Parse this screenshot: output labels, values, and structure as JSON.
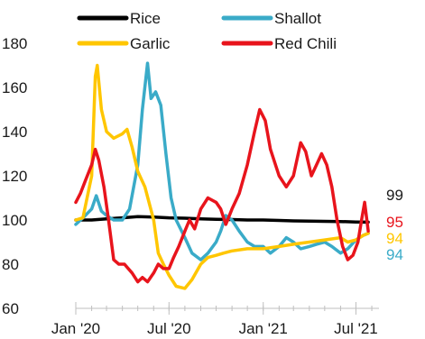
{
  "chart_data": {
    "type": "line",
    "title": "",
    "xlabel": "",
    "ylabel": "",
    "ylim": [
      60,
      180
    ],
    "yticks": [
      60,
      80,
      100,
      120,
      140,
      160,
      180
    ],
    "xlim": [
      "2020-01-01",
      "2021-08-15"
    ],
    "xticks": [
      {
        "date": "2020-01-01",
        "label": "Jan '20"
      },
      {
        "date": "2020-07-01",
        "label": "Jul '20"
      },
      {
        "date": "2021-01-01",
        "label": "Jan '21"
      },
      {
        "date": "2021-07-01",
        "label": "Jul '21"
      }
    ],
    "grid": false,
    "legend_position": "top",
    "series": [
      {
        "name": "Rice",
        "color": "#000000",
        "end_label": "99",
        "points": [
          [
            "2020-01-01",
            100
          ],
          [
            "2020-02-01",
            100
          ],
          [
            "2020-03-01",
            100.5
          ],
          [
            "2020-04-01",
            101
          ],
          [
            "2020-05-01",
            101.5
          ],
          [
            "2020-06-01",
            101.3
          ],
          [
            "2020-07-01",
            101
          ],
          [
            "2020-08-01",
            100.8
          ],
          [
            "2020-09-01",
            100.5
          ],
          [
            "2020-10-01",
            100.3
          ],
          [
            "2020-11-01",
            100.2
          ],
          [
            "2020-12-01",
            100
          ],
          [
            "2021-01-01",
            100
          ],
          [
            "2021-02-01",
            99.8
          ],
          [
            "2021-03-01",
            99.6
          ],
          [
            "2021-04-01",
            99.5
          ],
          [
            "2021-05-01",
            99.4
          ],
          [
            "2021-06-01",
            99.3
          ],
          [
            "2021-07-01",
            99.1
          ],
          [
            "2021-07-25",
            99
          ]
        ]
      },
      {
        "name": "Shallot",
        "color": "#3aabc8",
        "end_label": "94",
        "points": [
          [
            "2020-01-01",
            98
          ],
          [
            "2020-01-15",
            101
          ],
          [
            "2020-02-01",
            105
          ],
          [
            "2020-02-10",
            111
          ],
          [
            "2020-02-20",
            104
          ],
          [
            "2020-03-01",
            102
          ],
          [
            "2020-03-15",
            100
          ],
          [
            "2020-04-01",
            100
          ],
          [
            "2020-04-15",
            105
          ],
          [
            "2020-05-01",
            125
          ],
          [
            "2020-05-10",
            150
          ],
          [
            "2020-05-20",
            171
          ],
          [
            "2020-05-27",
            155
          ],
          [
            "2020-06-05",
            158
          ],
          [
            "2020-06-15",
            152
          ],
          [
            "2020-06-25",
            130
          ],
          [
            "2020-07-05",
            110
          ],
          [
            "2020-07-15",
            100
          ],
          [
            "2020-08-01",
            92
          ],
          [
            "2020-08-15",
            85
          ],
          [
            "2020-09-01",
            82
          ],
          [
            "2020-09-15",
            85
          ],
          [
            "2020-10-01",
            90
          ],
          [
            "2020-10-10",
            95
          ],
          [
            "2020-10-20",
            102
          ],
          [
            "2020-11-01",
            100
          ],
          [
            "2020-11-15",
            95
          ],
          [
            "2020-12-01",
            90
          ],
          [
            "2020-12-15",
            88
          ],
          [
            "2021-01-01",
            88
          ],
          [
            "2021-01-15",
            85
          ],
          [
            "2021-02-01",
            88
          ],
          [
            "2021-02-15",
            92
          ],
          [
            "2021-03-01",
            90
          ],
          [
            "2021-03-15",
            87
          ],
          [
            "2021-04-01",
            88
          ],
          [
            "2021-04-15",
            89
          ],
          [
            "2021-05-01",
            90
          ],
          [
            "2021-05-15",
            88
          ],
          [
            "2021-06-01",
            85
          ],
          [
            "2021-06-15",
            87
          ],
          [
            "2021-07-01",
            91
          ],
          [
            "2021-07-15",
            93
          ],
          [
            "2021-07-25",
            94
          ]
        ]
      },
      {
        "name": "Garlic",
        "color": "#ffc600",
        "end_label": "94",
        "points": [
          [
            "2020-01-01",
            100
          ],
          [
            "2020-01-15",
            101
          ],
          [
            "2020-02-01",
            120
          ],
          [
            "2020-02-08",
            165
          ],
          [
            "2020-02-12",
            170
          ],
          [
            "2020-02-20",
            150
          ],
          [
            "2020-03-01",
            140
          ],
          [
            "2020-03-15",
            137
          ],
          [
            "2020-04-01",
            139
          ],
          [
            "2020-04-10",
            141
          ],
          [
            "2020-04-20",
            133
          ],
          [
            "2020-05-01",
            122
          ],
          [
            "2020-05-15",
            115
          ],
          [
            "2020-06-01",
            100
          ],
          [
            "2020-06-10",
            85
          ],
          [
            "2020-06-20",
            80
          ],
          [
            "2020-07-01",
            75
          ],
          [
            "2020-07-15",
            70
          ],
          [
            "2020-08-01",
            69
          ],
          [
            "2020-08-15",
            73
          ],
          [
            "2020-09-01",
            80
          ],
          [
            "2020-09-15",
            83
          ],
          [
            "2020-10-01",
            84
          ],
          [
            "2020-10-15",
            85
          ],
          [
            "2020-11-01",
            86
          ],
          [
            "2020-12-01",
            87
          ],
          [
            "2021-01-01",
            87
          ],
          [
            "2021-02-01",
            88
          ],
          [
            "2021-03-01",
            89
          ],
          [
            "2021-04-01",
            90
          ],
          [
            "2021-05-01",
            91
          ],
          [
            "2021-06-01",
            92
          ],
          [
            "2021-06-15",
            90
          ],
          [
            "2021-07-01",
            91
          ],
          [
            "2021-07-15",
            93
          ],
          [
            "2021-07-25",
            94
          ]
        ]
      },
      {
        "name": "Red Chili",
        "color": "#e8141c",
        "end_label": "95",
        "points": [
          [
            "2020-01-01",
            108
          ],
          [
            "2020-01-10",
            112
          ],
          [
            "2020-01-20",
            118
          ],
          [
            "2020-02-01",
            125
          ],
          [
            "2020-02-08",
            132
          ],
          [
            "2020-02-15",
            127
          ],
          [
            "2020-02-25",
            115
          ],
          [
            "2020-03-05",
            100
          ],
          [
            "2020-03-15",
            82
          ],
          [
            "2020-03-25",
            80
          ],
          [
            "2020-04-05",
            80
          ],
          [
            "2020-04-20",
            76
          ],
          [
            "2020-05-01",
            72
          ],
          [
            "2020-05-10",
            74
          ],
          [
            "2020-05-20",
            72
          ],
          [
            "2020-06-01",
            76
          ],
          [
            "2020-06-10",
            80
          ],
          [
            "2020-06-20",
            78
          ],
          [
            "2020-07-01",
            78
          ],
          [
            "2020-07-10",
            83
          ],
          [
            "2020-07-20",
            88
          ],
          [
            "2020-08-01",
            95
          ],
          [
            "2020-08-10",
            100
          ],
          [
            "2020-08-20",
            96
          ],
          [
            "2020-09-01",
            105
          ],
          [
            "2020-09-15",
            110
          ],
          [
            "2020-10-01",
            108
          ],
          [
            "2020-10-10",
            105
          ],
          [
            "2020-10-20",
            98
          ],
          [
            "2020-11-01",
            105
          ],
          [
            "2020-11-15",
            112
          ],
          [
            "2020-12-01",
            125
          ],
          [
            "2020-12-15",
            140
          ],
          [
            "2020-12-25",
            150
          ],
          [
            "2021-01-05",
            145
          ],
          [
            "2021-01-15",
            132
          ],
          [
            "2021-02-01",
            120
          ],
          [
            "2021-02-15",
            115
          ],
          [
            "2021-03-01",
            120
          ],
          [
            "2021-03-15",
            135
          ],
          [
            "2021-03-25",
            131
          ],
          [
            "2021-04-05",
            120
          ],
          [
            "2021-04-15",
            125
          ],
          [
            "2021-04-25",
            130
          ],
          [
            "2021-05-05",
            125
          ],
          [
            "2021-05-15",
            115
          ],
          [
            "2021-05-25",
            100
          ],
          [
            "2021-06-05",
            88
          ],
          [
            "2021-06-15",
            82
          ],
          [
            "2021-06-25",
            84
          ],
          [
            "2021-07-05",
            90
          ],
          [
            "2021-07-12",
            100
          ],
          [
            "2021-07-18",
            108
          ],
          [
            "2021-07-25",
            95
          ]
        ]
      }
    ]
  }
}
